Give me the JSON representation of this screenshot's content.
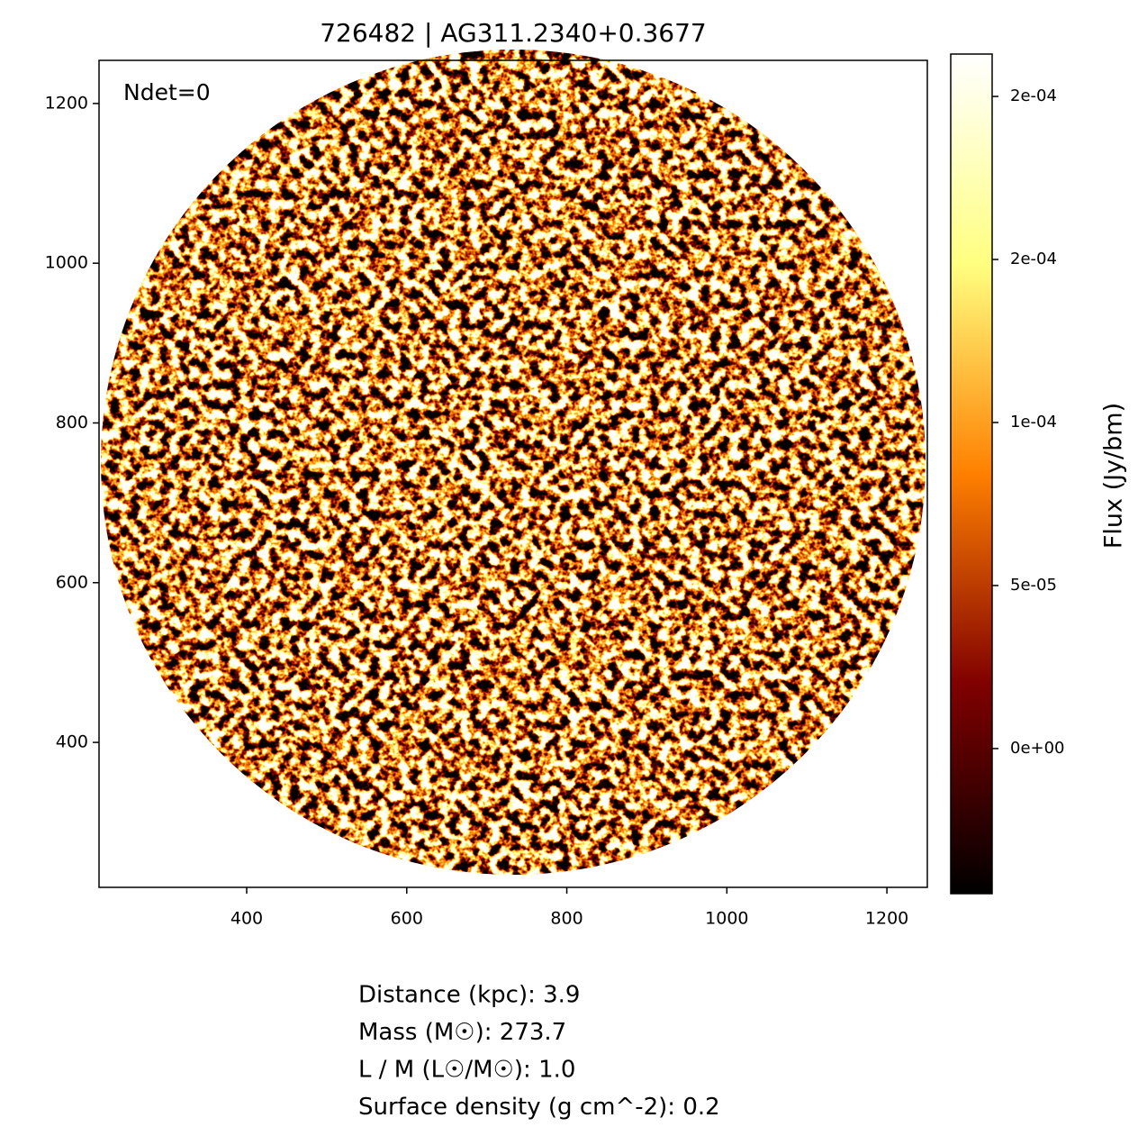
{
  "chart_data": {
    "type": "image",
    "title": "726482 | AG311.2340+0.3677",
    "annotation": "Ndet=0",
    "xlim": [
      215.5,
      1250.5
    ],
    "ylim": [
      218.5,
      1254
    ],
    "xticks": [
      400,
      600,
      800,
      1000,
      1200
    ],
    "yticks": [
      400,
      600,
      800,
      1000,
      1200
    ],
    "colormap": "afmhot",
    "colorbar": {
      "label": "Flux (Jy/bm)",
      "lim": [
        -4.45e-05,
        0.000213
      ],
      "ticks": [
        {
          "value": 0,
          "label": "0e+00"
        },
        {
          "value": 5e-05,
          "label": "5e-05"
        },
        {
          "value": 0.0001,
          "label": "1e-04"
        },
        {
          "value": 0.00015,
          "label": "2e-04"
        },
        {
          "value": 0.0002,
          "label": "2e-04"
        }
      ]
    },
    "info_lines": [
      "Distance (kpc): 3.9",
      "Mass (M☉): 273.7",
      "L / M (L☉/M☉): 1.0",
      "Surface density (g cm^-2): 0.2"
    ]
  }
}
